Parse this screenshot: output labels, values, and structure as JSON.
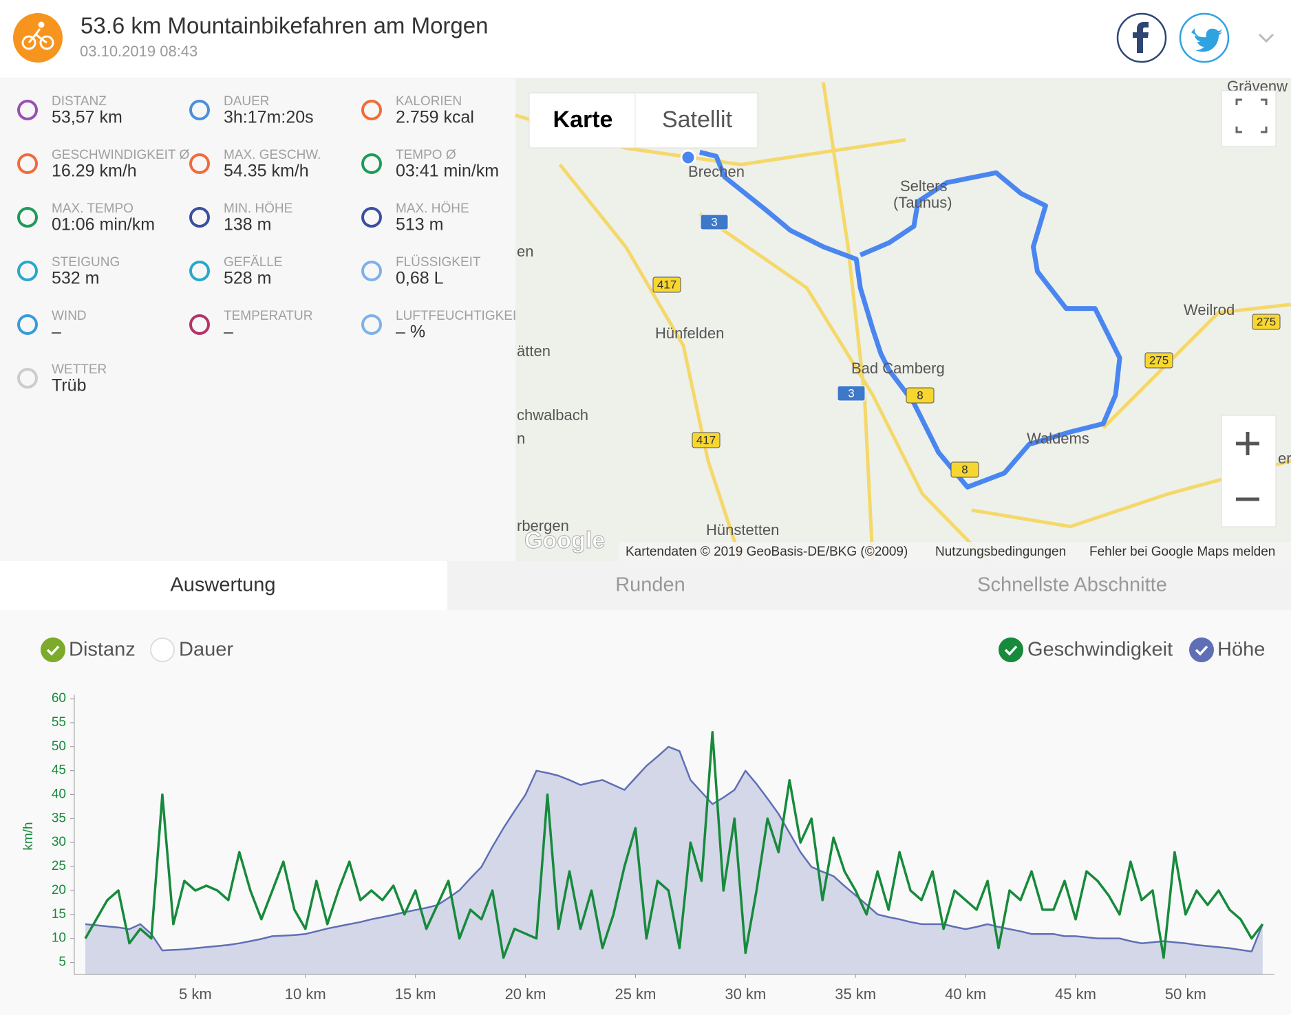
{
  "header": {
    "title": "53.6 km Mountainbikefahren am Morgen",
    "date": "03.10.2019 08:43"
  },
  "stats": [
    {
      "label": "DISTANZ",
      "value": "53,57 km"
    },
    {
      "label": "DAUER",
      "value": "3h:17m:20s"
    },
    {
      "label": "KALORIEN",
      "value": "2.759 kcal"
    },
    {
      "label": "GESCHWINDIGKEIT Ø",
      "value": "16.29 km/h"
    },
    {
      "label": "MAX. GESCHW.",
      "value": "54.35 km/h"
    },
    {
      "label": "TEMPO Ø",
      "value": "03:41 min/km"
    },
    {
      "label": "MAX. TEMPO",
      "value": "01:06 min/km"
    },
    {
      "label": "MIN. HÖHE",
      "value": "138 m"
    },
    {
      "label": "MAX. HÖHE",
      "value": "513 m"
    },
    {
      "label": "STEIGUNG",
      "value": "532 m"
    },
    {
      "label": "GEFÄLLE",
      "value": "528 m"
    },
    {
      "label": "FLÜSSIGKEIT",
      "value": "0,68 L"
    },
    {
      "label": "WIND",
      "value": "–"
    },
    {
      "label": "TEMPERATUR",
      "value": "–"
    },
    {
      "label": "LUFTFEUCHTIGKEIT",
      "value": "– %"
    },
    {
      "label": "WETTER",
      "value": "Trüb"
    }
  ],
  "map": {
    "buttons": [
      "Karte",
      "Satellit"
    ],
    "places": [
      "Grävenw",
      "Brechen",
      "Selters",
      "(Taunus)",
      "Hünfelden",
      "Bad Camberg",
      "Weilrod",
      "Waldems",
      "Hünstetten",
      "en",
      "ätten",
      "chwalbach",
      "n",
      "rbergen",
      "er"
    ],
    "roads": [
      "3",
      "417",
      "3",
      "417",
      "8",
      "8",
      "275",
      "275"
    ],
    "logo": "Google",
    "footer": [
      "Kartendaten © 2019 GeoBasis-DE/BKG (©2009)",
      "Nutzungsbedingungen",
      "Fehler bei Google Maps melden"
    ]
  },
  "tabs": [
    "Auswertung",
    "Runden",
    "Schnellste Abschnitte"
  ],
  "toggles": [
    {
      "label": "Distanz",
      "checked": true
    },
    {
      "label": "Dauer",
      "checked": false
    }
  ],
  "chart_data": {
    "type": "line",
    "y_label": "km/h",
    "x": [
      0,
      0.5,
      1,
      1.5,
      2,
      2.5,
      3,
      3.5,
      4,
      4.5,
      5,
      5.5,
      6,
      6.5,
      7,
      7.5,
      8,
      8.5,
      9,
      9.5,
      10,
      10.5,
      11,
      11.5,
      12,
      12.5,
      13,
      13.5,
      14,
      14.5,
      15,
      15.5,
      16,
      16.5,
      17,
      17.5,
      18,
      18.5,
      19,
      19.5,
      20,
      20.5,
      21,
      21.5,
      22,
      22.5,
      23,
      23.5,
      24,
      24.5,
      25,
      25.5,
      26,
      26.5,
      27,
      27.5,
      28,
      28.5,
      29,
      29.5,
      30,
      30.5,
      31,
      31.5,
      32,
      32.5,
      33,
      33.5,
      34,
      34.5,
      35,
      35.5,
      36,
      36.5,
      37,
      37.5,
      38,
      38.5,
      39,
      39.5,
      40,
      40.5,
      41,
      41.5,
      42,
      42.5,
      43,
      43.5,
      44,
      44.5,
      45,
      45.5,
      46,
      46.5,
      47,
      47.5,
      48,
      48.5,
      49,
      49.5,
      50,
      50.5,
      51,
      51.5,
      52,
      52.5,
      53,
      53.5
    ],
    "series": [
      {
        "name": "Geschwindigkeit",
        "color": "#178a3c",
        "values": [
          10,
          14,
          18,
          20,
          9,
          12,
          10,
          40,
          13,
          22,
          20,
          21,
          20,
          18,
          28,
          20,
          14,
          20,
          26,
          16,
          12,
          22,
          13,
          20,
          26,
          18,
          20,
          18,
          21,
          15,
          20,
          12,
          17,
          22,
          10,
          16,
          14,
          20,
          6,
          12,
          11,
          10,
          40,
          12,
          24,
          12,
          20,
          8,
          15,
          25,
          33,
          10,
          22,
          20,
          8,
          30,
          22,
          53,
          20,
          35,
          7,
          20,
          35,
          28,
          43,
          30,
          35,
          18,
          31,
          24,
          20,
          15,
          24,
          16,
          28,
          20,
          18,
          24,
          12,
          20,
          18,
          16,
          22,
          8,
          20,
          18,
          24,
          16,
          16,
          22,
          14,
          24,
          22,
          19,
          15,
          26,
          18,
          20,
          6,
          28,
          15,
          20,
          17,
          20,
          16,
          14,
          10,
          13
        ]
      },
      {
        "name": "Höhe",
        "color": "#5f6fb5",
        "fill": "#d3d7e8",
        "axis": "y2",
        "values": [
          188,
          186,
          184,
          182,
          179,
          188,
          170,
          140,
          141,
          142,
          144,
          146,
          148,
          150,
          153,
          157,
          161,
          166,
          167,
          168,
          170,
          175,
          180,
          184,
          188,
          192,
          197,
          201,
          205,
          210,
          214,
          218,
          223,
          236,
          250,
          272,
          293,
          330,
          364,
          395,
          425,
          469,
          465,
          460,
          452,
          443,
          448,
          452,
          443,
          434,
          456,
          478,
          495,
          513,
          505,
          452,
          430,
          408,
          420,
          434,
          469,
          445,
          418,
          390,
          355,
          320,
          293,
          284,
          276,
          258,
          241,
          224,
          206,
          201,
          197,
          192,
          188,
          188,
          188,
          183,
          179,
          183,
          188,
          183,
          179,
          175,
          170,
          170,
          170,
          166,
          166,
          164,
          162,
          162,
          162,
          157,
          153,
          155,
          157,
          155,
          153,
          150,
          148,
          146,
          144,
          141,
          138,
          188
        ]
      }
    ],
    "xlim": [
      0,
      53.57
    ],
    "xticks": [
      {
        "value": 5,
        "label": "5 km"
      },
      {
        "value": 10,
        "label": "10 km"
      },
      {
        "value": 15,
        "label": "15 km"
      },
      {
        "value": 20,
        "label": "20 km"
      },
      {
        "value": 25,
        "label": "25 km"
      },
      {
        "value": 30,
        "label": "30 km"
      },
      {
        "value": 35,
        "label": "35 km"
      },
      {
        "value": 40,
        "label": "40 km"
      },
      {
        "value": 45,
        "label": "45 km"
      },
      {
        "value": 50,
        "label": "50 km"
      }
    ],
    "ylim": [
      2.5,
      60
    ],
    "yticks": [
      5,
      10,
      15,
      20,
      25,
      30,
      35,
      40,
      45,
      50,
      55,
      60
    ],
    "y2lim": [
      96,
      601
    ],
    "grid": false,
    "legend": "top-right"
  }
}
